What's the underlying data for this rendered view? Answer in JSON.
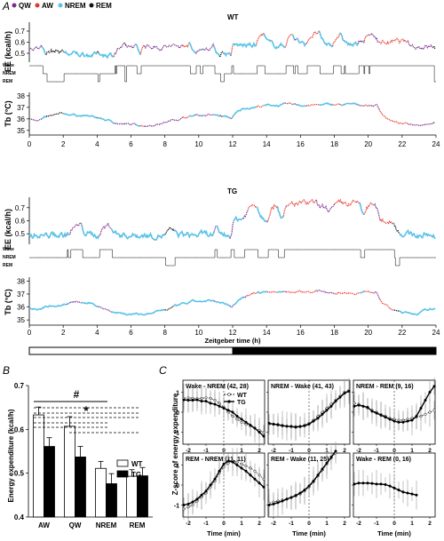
{
  "panels": {
    "a": "A",
    "b": "B",
    "c": "C"
  },
  "legend": [
    {
      "name": "QW",
      "color": "#7b2d8e"
    },
    {
      "name": "AW",
      "color": "#e8352a"
    },
    {
      "name": "NREM",
      "color": "#5bc2e7"
    },
    {
      "name": "REM",
      "color": "#111111"
    }
  ],
  "chart_data": [
    {
      "type": "line",
      "group": "WT",
      "x_ticks": [
        "0",
        "2",
        "4",
        "6",
        "8",
        "10",
        "12",
        "14",
        "16",
        "18",
        "20",
        "22",
        "24"
      ],
      "ee_label": "EE (kcal/h)",
      "ee_ticks": [
        "0.5",
        "0.6",
        "0.7"
      ],
      "ee_range": [
        0.42,
        0.78
      ],
      "hypno_labels": [
        "Wake",
        "NREM",
        "REM"
      ],
      "tb_label": "Tb (°C)",
      "tb_ticks": [
        "35",
        "36",
        "37",
        "38"
      ],
      "tb_range": [
        34.6,
        38.3
      ],
      "x_range": [
        0,
        24
      ]
    },
    {
      "type": "line",
      "group": "TG",
      "x_ticks": [
        "0",
        "2",
        "4",
        "6",
        "8",
        "10",
        "12",
        "14",
        "16",
        "18",
        "20",
        "22",
        "24"
      ],
      "ee_label": "EE (kcal/h)",
      "ee_ticks": [
        "0.5",
        "0.6",
        "0.7"
      ],
      "ee_range": [
        0.42,
        0.78
      ],
      "hypno_labels": [
        "Wake",
        "NREM",
        "REM"
      ],
      "tb_label": "Tb (°C)",
      "tb_ticks": [
        "35",
        "36",
        "37",
        "38"
      ],
      "tb_range": [
        34.6,
        38.3
      ],
      "x_range": [
        0,
        24
      ],
      "xlabel": "Zeitgeber time (h)"
    },
    {
      "type": "bar",
      "categories": [
        "AW",
        "QW",
        "NREM",
        "REM"
      ],
      "series": [
        {
          "name": "WT",
          "values": [
            0.633,
            0.607,
            0.511,
            0.493
          ],
          "errors": [
            0.018,
            0.022,
            0.016,
            0.015
          ]
        },
        {
          "name": "TG",
          "values": [
            0.561,
            0.537,
            0.476,
            0.494
          ],
          "errors": [
            0.02,
            0.024,
            0.023,
            0.019
          ]
        }
      ],
      "ylabel": "Energy expenditure (kcal/h)",
      "ylim": [
        0.4,
        0.7
      ],
      "yticks": [
        "0.4",
        "0.5",
        "0.6",
        "0.7"
      ],
      "annotations": [
        "#",
        "*"
      ]
    },
    {
      "type": "line",
      "ylabel": "Z-score of energy expenditure",
      "xlabel": "Time (min)",
      "xticks": [
        "-2",
        "-1",
        "0",
        "1",
        "2"
      ],
      "yticks": [
        "-1",
        "0",
        "1"
      ],
      "legend": [
        "WT",
        "TG"
      ],
      "subplots": [
        {
          "title": "Wake - NREM (42, 28)",
          "x": [
            -2.25,
            -2,
            -1.75,
            -1.5,
            -1.25,
            -1,
            -0.75,
            -0.5,
            -0.25,
            0,
            0.25,
            0.5,
            0.75,
            1,
            1.25,
            1.5,
            1.75,
            2,
            2.25
          ],
          "WT": [
            0.7,
            0.72,
            0.7,
            0.68,
            0.7,
            0.72,
            0.7,
            0.6,
            0.45,
            0.25,
            0.0,
            -0.2,
            -0.35,
            -0.5,
            -0.6,
            -0.7,
            -0.8,
            -0.9,
            -1.0
          ],
          "TG": [
            0.62,
            0.6,
            0.6,
            0.62,
            0.55,
            0.55,
            0.45,
            0.4,
            0.3,
            0.2,
            0.1,
            0.0,
            -0.2,
            -0.35,
            -0.5,
            -0.65,
            -0.8,
            -1.0,
            -1.2
          ]
        },
        {
          "title": "NREM - Wake (41, 43)",
          "x": [
            -2.25,
            -2,
            -1.75,
            -1.5,
            -1.25,
            -1,
            -0.75,
            -0.5,
            -0.25,
            0,
            0.25,
            0.5,
            0.75,
            1,
            1.25,
            1.5,
            1.75,
            2,
            2.25
          ],
          "WT": [
            -0.6,
            -0.6,
            -0.65,
            -0.65,
            -0.7,
            -0.7,
            -0.72,
            -0.7,
            -0.65,
            -0.55,
            -0.4,
            -0.2,
            0.0,
            0.2,
            0.4,
            0.6,
            0.8,
            1.0,
            1.1
          ],
          "TG": [
            -0.55,
            -0.6,
            -0.62,
            -0.68,
            -0.7,
            -0.72,
            -0.75,
            -0.72,
            -0.68,
            -0.6,
            -0.45,
            -0.3,
            -0.1,
            0.1,
            0.3,
            0.55,
            0.75,
            0.95,
            1.05
          ]
        },
        {
          "title": "NREM - REM (9, 16)",
          "x": [
            -2.25,
            -2,
            -1.75,
            -1.5,
            -1.25,
            -1,
            -0.75,
            -0.5,
            -0.25,
            0,
            0.25,
            0.5,
            0.75,
            1,
            1.25,
            1.5,
            1.75,
            2,
            2.25
          ],
          "WT": [
            0.45,
            0.4,
            0.3,
            0.2,
            0.1,
            0.0,
            -0.1,
            -0.2,
            -0.3,
            -0.35,
            -0.4,
            -0.4,
            -0.35,
            -0.3,
            -0.25,
            -0.2,
            -0.1,
            0.0,
            0.1
          ],
          "TG": [
            0.3,
            0.35,
            0.3,
            0.25,
            0.05,
            -0.05,
            -0.15,
            -0.25,
            -0.35,
            -0.45,
            -0.5,
            -0.5,
            -0.45,
            -0.4,
            -0.2,
            0.2,
            0.6,
            1.0,
            1.3
          ]
        },
        {
          "title": "REM - NREM (11, 11)",
          "x": [
            -2.25,
            -2,
            -1.75,
            -1.5,
            -1.25,
            -1,
            -0.75,
            -0.5,
            -0.25,
            0,
            0.25,
            0.5,
            0.75,
            1,
            1.25,
            1.5,
            1.75,
            2,
            2.25
          ],
          "WT": [
            -1.2,
            -1.1,
            -1.0,
            -0.8,
            -0.6,
            -0.4,
            -0.1,
            0.2,
            0.6,
            0.9,
            1.1,
            1.2,
            1.15,
            1.05,
            0.95,
            0.85,
            0.7,
            0.5,
            0.3
          ],
          "TG": [
            -1.0,
            -0.95,
            -0.85,
            -0.7,
            -0.5,
            -0.3,
            0.0,
            0.3,
            0.7,
            1.05,
            1.2,
            1.15,
            1.0,
            0.85,
            0.7,
            0.5,
            0.3,
            0.1,
            -0.1
          ]
        },
        {
          "title": "REM - Wake (11, 25)",
          "x": [
            -2.25,
            -2,
            -1.75,
            -1.5,
            -1.25,
            -1,
            -0.75,
            -0.5,
            -0.25,
            0,
            0.25,
            0.5,
            0.75,
            1,
            1.25,
            1.5,
            1.75,
            2,
            2.25
          ],
          "WT": [
            -0.9,
            -0.85,
            -0.8,
            -0.75,
            -0.7,
            -0.62,
            -0.55,
            -0.45,
            -0.3,
            -0.1,
            0.15,
            0.45,
            0.75,
            1.05,
            1.35,
            1.6,
            null,
            null,
            null
          ],
          "TG": [
            -1.0,
            -0.95,
            -0.88,
            -0.8,
            -0.7,
            -0.62,
            -0.52,
            -0.4,
            -0.25,
            -0.05,
            0.2,
            0.5,
            0.8,
            1.1,
            1.4,
            1.7,
            null,
            null,
            null
          ]
        },
        {
          "title": "Wake - REM (0, 16)",
          "x": [
            -2.25,
            -2,
            -1.75,
            -1.5,
            -1.25,
            -1,
            -0.75,
            -0.5,
            -0.25,
            0,
            0.25,
            0.5,
            0.75,
            1,
            1.25,
            1.5,
            1.75,
            2,
            2.25
          ],
          "WT": [
            null,
            null,
            null,
            null,
            null,
            null,
            null,
            null,
            null,
            null,
            null,
            null,
            null,
            null,
            null,
            null,
            null,
            null,
            null
          ],
          "TG": [
            0.05,
            0.1,
            0.1,
            0.1,
            0.08,
            0.05,
            0.05,
            0.02,
            -0.05,
            -0.15,
            -0.25,
            -0.35,
            -0.4,
            -0.45,
            -0.5,
            null,
            null,
            null,
            null
          ]
        }
      ]
    }
  ]
}
